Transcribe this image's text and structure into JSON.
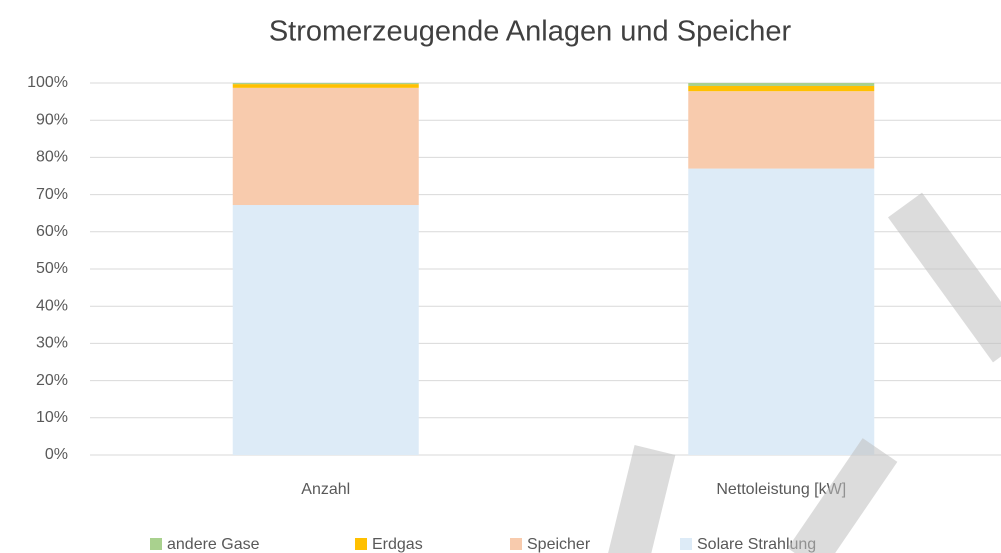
{
  "chart_data": {
    "type": "stacked_bar",
    "title": "Stromerzeugende Anlagen und Speicher",
    "categories": [
      "Anzahl",
      "Nettoleistung [kW]"
    ],
    "series": [
      {
        "name": "Solare Strahlung",
        "color": "#ddebf7",
        "values": [
          67.2,
          77.0
        ]
      },
      {
        "name": "Speicher",
        "color": "#f8cbad",
        "values": [
          31.5,
          20.8
        ]
      },
      {
        "name": "Erdgas",
        "color": "#ffc000",
        "values": [
          1.0,
          1.4
        ]
      },
      {
        "name": "andere Gase",
        "color": "#a9d18e",
        "values": [
          0.3,
          0.8
        ]
      }
    ],
    "ylim": [
      0,
      100
    ],
    "yticks": [
      {
        "value": 0,
        "label": "0%"
      },
      {
        "value": 10,
        "label": "10%"
      },
      {
        "value": 20,
        "label": "20%"
      },
      {
        "value": 30,
        "label": "30%"
      },
      {
        "value": 40,
        "label": "40%"
      },
      {
        "value": 50,
        "label": "50%"
      },
      {
        "value": 60,
        "label": "60%"
      },
      {
        "value": 70,
        "label": "70%"
      },
      {
        "value": 80,
        "label": "80%"
      },
      {
        "value": 90,
        "label": "90%"
      },
      {
        "value": 100,
        "label": "100%"
      }
    ],
    "grid": true,
    "legend": "bottom"
  }
}
